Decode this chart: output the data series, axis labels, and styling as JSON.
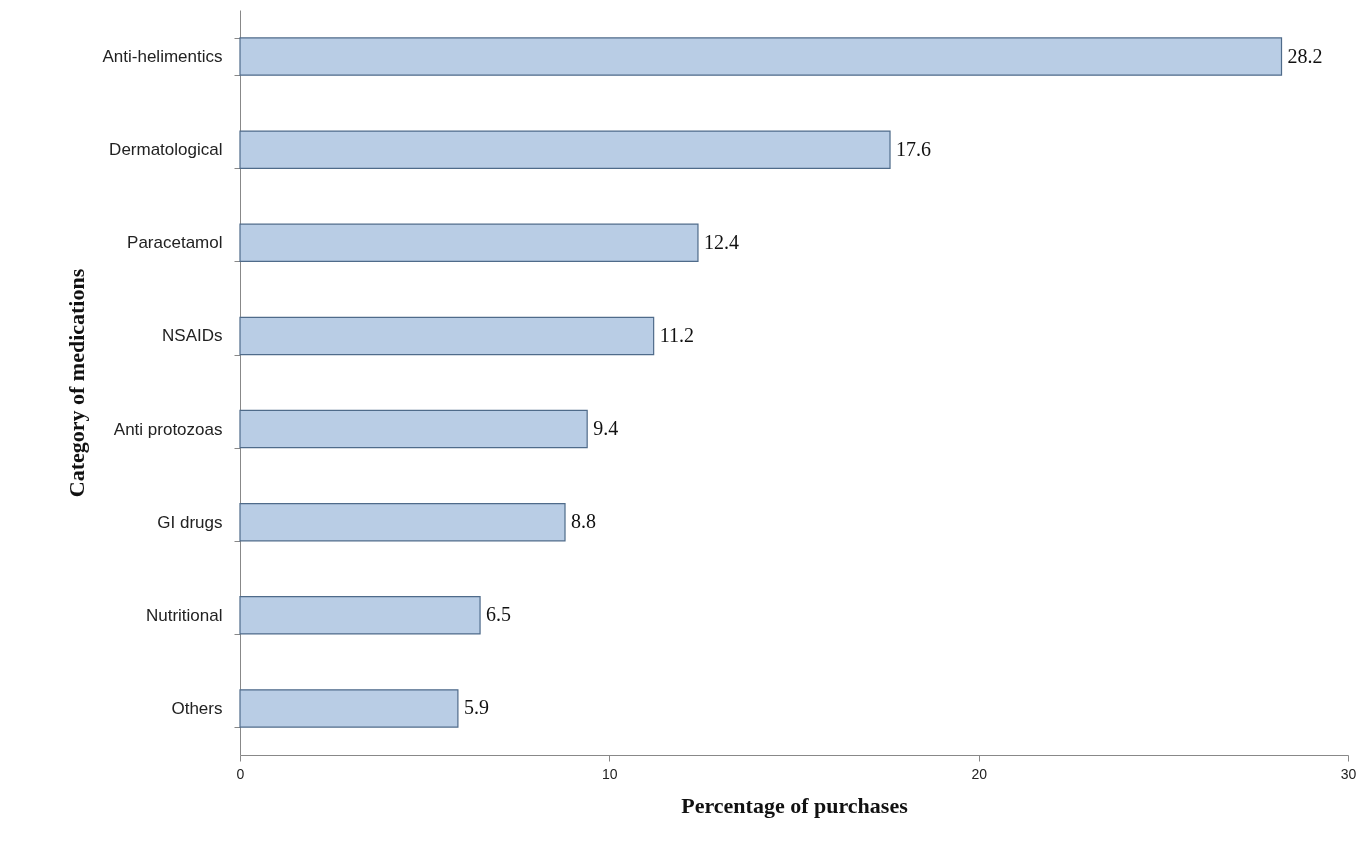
{
  "chart_data": {
    "type": "bar",
    "orientation": "horizontal",
    "xlabel": "Percentage of purchases",
    "ylabel": "Category of medications",
    "categories": [
      "Anti-helimentics",
      "Dermatological",
      "Paracetamol",
      "NSAIDs",
      "Anti protozoas",
      "GI drugs",
      "Nutritional",
      "Others"
    ],
    "values": [
      28.2,
      17.6,
      12.4,
      11.2,
      9.4,
      8.8,
      6.5,
      5.9
    ],
    "color": "#b9cde5",
    "xlim": [
      0,
      30
    ],
    "xticks": [
      0,
      10,
      20,
      30
    ],
    "data_labels": true
  }
}
